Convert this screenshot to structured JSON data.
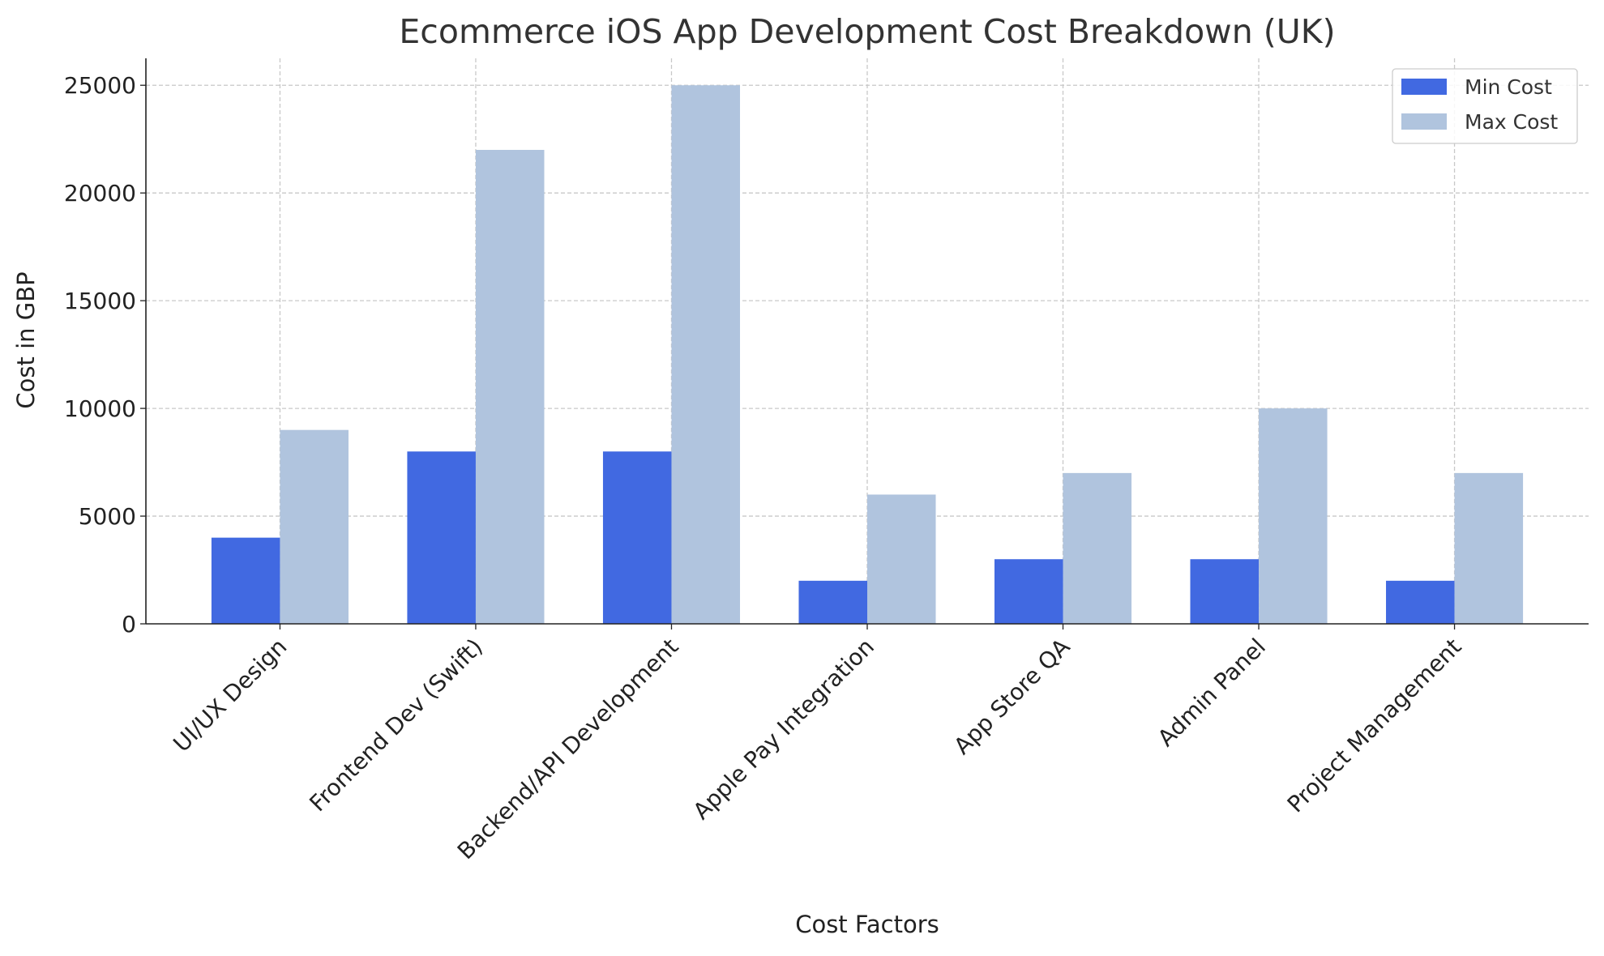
{
  "chart_data": {
    "type": "bar",
    "title": "Ecommerce iOS App Development Cost Breakdown (UK)",
    "xlabel": "Cost Factors",
    "ylabel": "Cost in GBP",
    "categories": [
      "UI/UX Design",
      "Frontend Dev (Swift)",
      "Backend/API Development",
      "Apple Pay Integration",
      "App Store QA",
      "Admin Panel",
      "Project Management"
    ],
    "series": [
      {
        "name": "Min Cost",
        "color": "#4169E1",
        "values": [
          4000,
          8000,
          8000,
          2000,
          3000,
          3000,
          2000
        ]
      },
      {
        "name": "Max Cost",
        "color": "#B0C4DE",
        "values": [
          9000,
          22000,
          25000,
          6000,
          7000,
          10000,
          7000
        ]
      }
    ],
    "ylim": [
      0,
      26250
    ],
    "yticks": [
      0,
      5000,
      10000,
      15000,
      20000,
      25000
    ],
    "grid": true,
    "legend": "top-right"
  }
}
